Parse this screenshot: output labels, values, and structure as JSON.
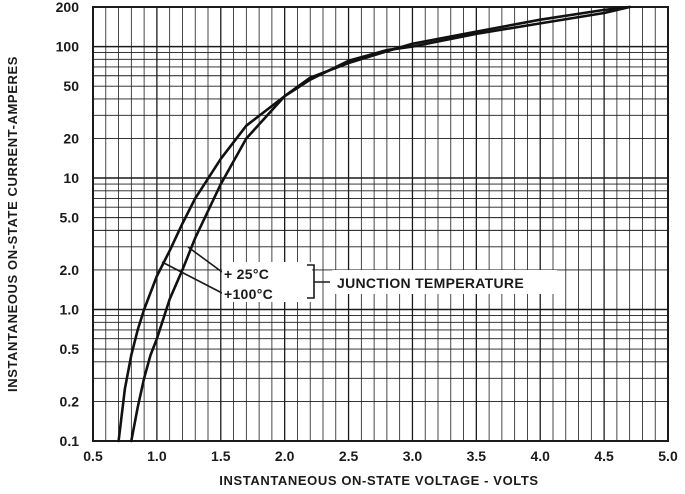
{
  "chart_data": {
    "type": "line",
    "title": "",
    "xlabel": "INSTANTANEOUS ON-STATE VOLTAGE - VOLTS",
    "ylabel": "INSTANTANEOUS ON-STATE CURRENT-AMPERES",
    "xlim": [
      0.5,
      5.0
    ],
    "ylim": [
      0.1,
      200
    ],
    "yscale": "log",
    "grid": true,
    "x_ticks": [
      "0.5",
      "1.0",
      "1.5",
      "2.0",
      "2.5",
      "3.0",
      "3.5",
      "4.0",
      "4.5",
      "5.0"
    ],
    "y_ticks": [
      "0.1",
      "0.2",
      "0.5",
      "1.0",
      "2.0",
      "5.0",
      "10",
      "20",
      "50",
      "100",
      "200"
    ],
    "series": [
      {
        "name": "25 °C",
        "x": [
          0.7,
          0.75,
          0.8,
          0.85,
          0.9,
          1.0,
          1.1,
          1.2,
          1.3,
          1.5,
          1.7,
          2.0,
          2.2,
          2.5,
          2.8,
          3.0,
          3.5,
          4.0,
          4.5,
          4.7
        ],
        "y": [
          0.1,
          0.25,
          0.45,
          0.7,
          1.0,
          1.8,
          2.8,
          4.5,
          7.0,
          14,
          25,
          42,
          58,
          75,
          92,
          105,
          130,
          160,
          190,
          200
        ]
      },
      {
        "name": "100 °C",
        "x": [
          0.8,
          0.85,
          0.9,
          0.95,
          1.0,
          1.1,
          1.2,
          1.3,
          1.5,
          1.7,
          2.0,
          2.2,
          2.5,
          2.8,
          3.0,
          3.5,
          4.0,
          4.5,
          4.7
        ],
        "y": [
          0.1,
          0.18,
          0.3,
          0.45,
          0.6,
          1.2,
          2.0,
          3.5,
          9.0,
          20,
          42,
          56,
          78,
          94,
          100,
          125,
          150,
          180,
          200
        ]
      }
    ],
    "annotation": {
      "label_25": "+ 25°C",
      "label_100": "+100°C",
      "junction": "JUNCTION TEMPERATURE"
    }
  }
}
